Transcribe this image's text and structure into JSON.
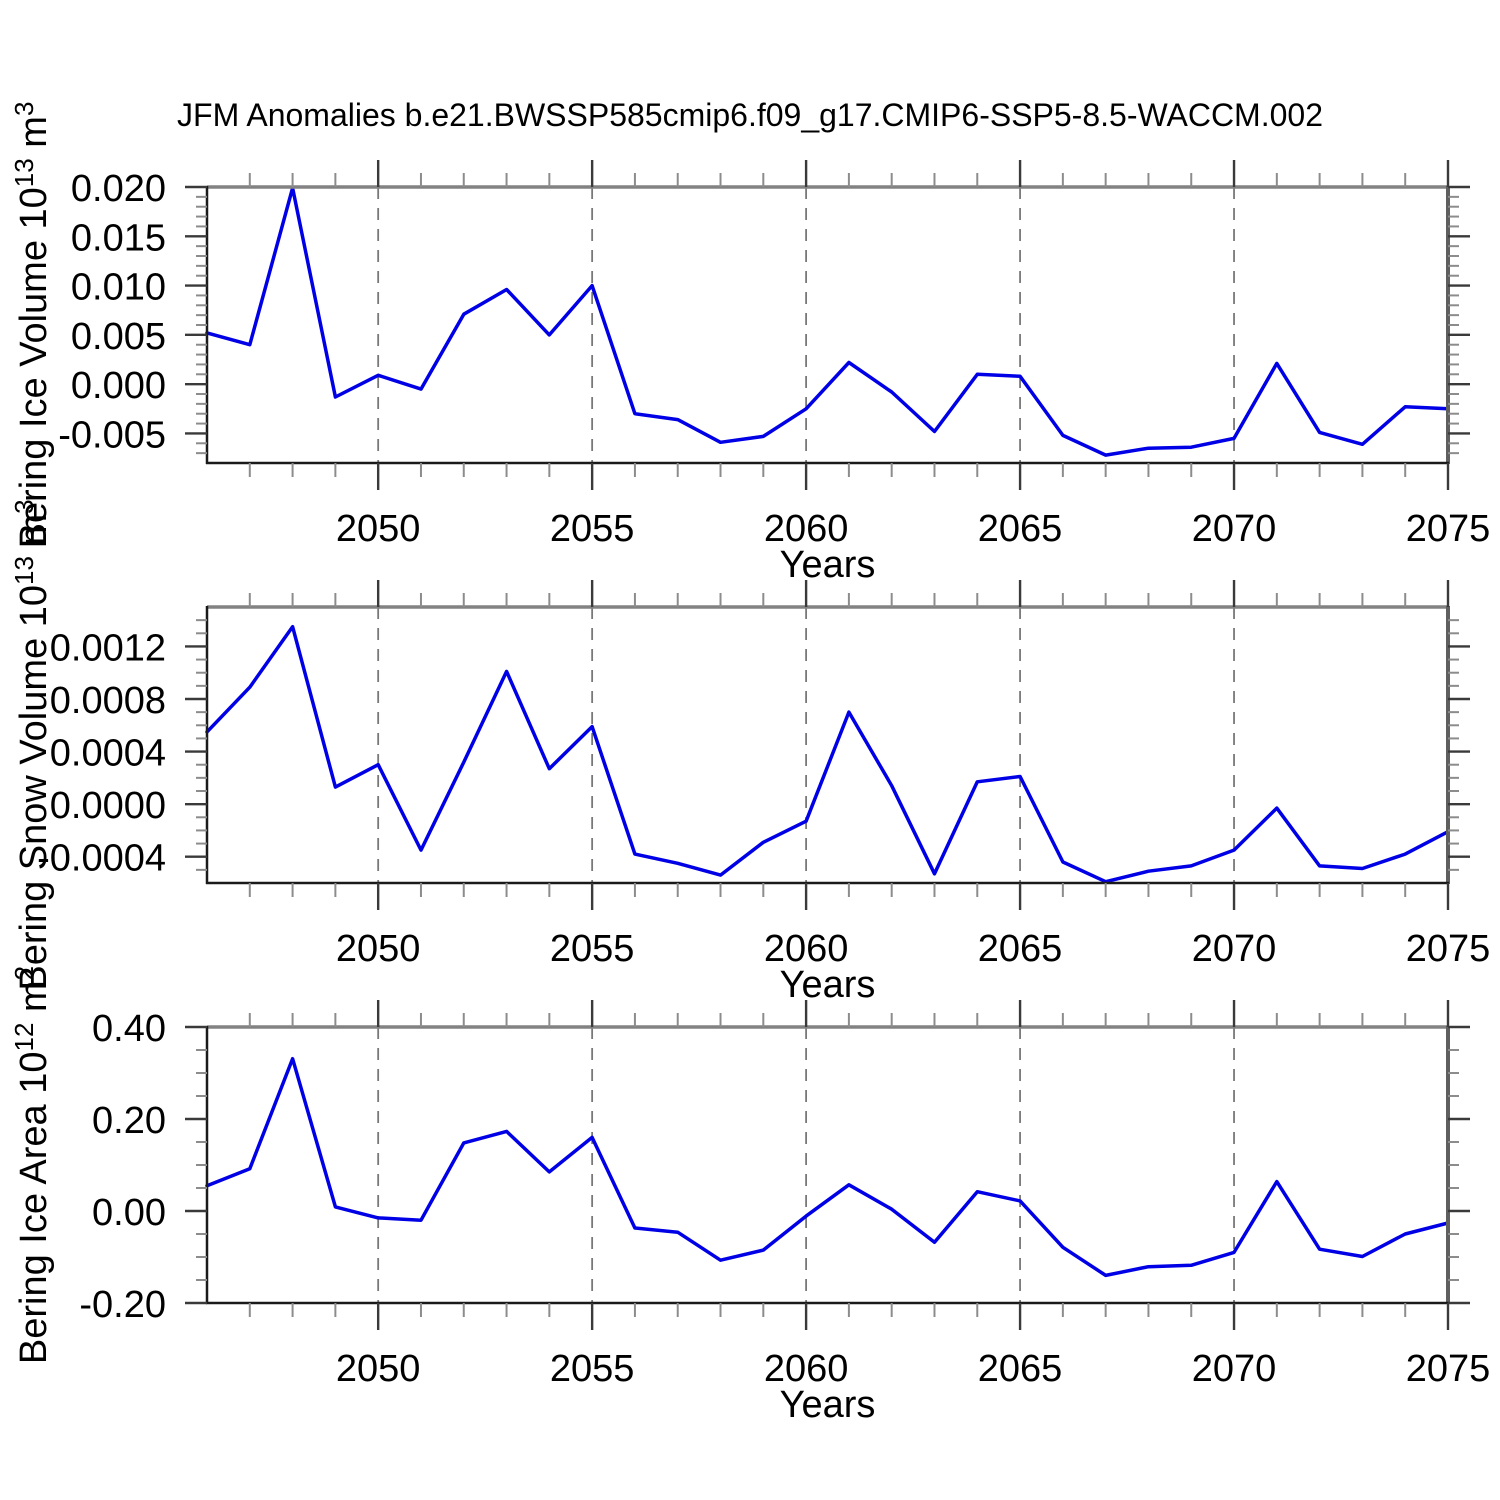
{
  "figure": {
    "title": "JFM Anomalies b.e21.BWSSP585cmip6.f09_g17.CMIP6-SSP5-8.5-WACCM.002"
  },
  "colors": {
    "line": "#0000e6",
    "grid": "#787878",
    "spine_dark": "#1a1a1a",
    "spine_top": "#828282",
    "spine_right": "#5f5f5f",
    "tick_major": "#3a3a3a",
    "tick_minor": "#8c8c8c"
  },
  "chart_data": [
    {
      "id": "bering-ice-volume",
      "type": "line",
      "ylabel": "Bering Ice Volume 10^13 m^3",
      "ylabel_parts": [
        {
          "t": "Bering Ice Volume 10"
        },
        {
          "sup": "13"
        },
        {
          "t": " m"
        },
        {
          "sup": "3"
        }
      ],
      "xlabel": "Years",
      "xlim": [
        2046,
        2075
      ],
      "ylim": [
        -0.008,
        0.02
      ],
      "xticks": [
        {
          "v": 2050,
          "label": "2050"
        },
        {
          "v": 2055,
          "label": "2055"
        },
        {
          "v": 2060,
          "label": "2060"
        },
        {
          "v": 2065,
          "label": "2065"
        },
        {
          "v": 2070,
          "label": "2070"
        },
        {
          "v": 2075,
          "label": "2075"
        }
      ],
      "yticks": [
        {
          "v": 0.02,
          "label": "0.020"
        },
        {
          "v": 0.015,
          "label": "0.015"
        },
        {
          "v": 0.01,
          "label": "0.010"
        },
        {
          "v": 0.005,
          "label": "0.005"
        },
        {
          "v": 0.0,
          "label": "0.000"
        },
        {
          "v": -0.005,
          "label": "-0.005"
        }
      ],
      "yminor_step": 0.001,
      "xminor_step": 1,
      "grid_vertical_dashed": true,
      "x": [
        2046,
        2047,
        2048,
        2049,
        2050,
        2051,
        2052,
        2053,
        2054,
        2055,
        2056,
        2057,
        2058,
        2059,
        2060,
        2061,
        2062,
        2063,
        2064,
        2065,
        2066,
        2067,
        2068,
        2069,
        2070,
        2071,
        2072,
        2073,
        2074,
        2075
      ],
      "values": [
        0.0052,
        0.004,
        0.0199,
        -0.0013,
        0.0009,
        -0.0005,
        0.0071,
        0.0096,
        0.005,
        0.01,
        -0.003,
        -0.0036,
        -0.0059,
        -0.0053,
        -0.0025,
        0.0022,
        -0.0008,
        -0.0048,
        0.001,
        0.0008,
        -0.0052,
        -0.0072,
        -0.0065,
        -0.0064,
        -0.0055,
        0.0021,
        -0.0049,
        -0.0061,
        -0.0023,
        -0.0025
      ]
    },
    {
      "id": "bering-snow-volume",
      "type": "line",
      "ylabel": "Bering Snow Volume 10^13 m^3",
      "ylabel_parts": [
        {
          "t": "Bering Snow Volume 10"
        },
        {
          "sup": "13"
        },
        {
          "t": " m"
        },
        {
          "sup": "3"
        }
      ],
      "xlabel": "Years",
      "xlim": [
        2046,
        2075
      ],
      "ylim": [
        -0.0006,
        0.0015
      ],
      "xticks": [
        {
          "v": 2050,
          "label": "2050"
        },
        {
          "v": 2055,
          "label": "2055"
        },
        {
          "v": 2060,
          "label": "2060"
        },
        {
          "v": 2065,
          "label": "2065"
        },
        {
          "v": 2070,
          "label": "2070"
        },
        {
          "v": 2075,
          "label": "2075"
        }
      ],
      "yticks": [
        {
          "v": 0.0012,
          "label": "0.0012"
        },
        {
          "v": 0.0008,
          "label": "0.0008"
        },
        {
          "v": 0.0004,
          "label": "0.0004"
        },
        {
          "v": 0.0,
          "label": "0.0000"
        },
        {
          "v": -0.0004,
          "label": "-0.0004"
        }
      ],
      "yminor_step": 0.0001,
      "xminor_step": 1,
      "grid_vertical_dashed": true,
      "x": [
        2046,
        2047,
        2048,
        2049,
        2050,
        2051,
        2052,
        2053,
        2054,
        2055,
        2056,
        2057,
        2058,
        2059,
        2060,
        2061,
        2062,
        2063,
        2064,
        2065,
        2066,
        2067,
        2068,
        2069,
        2070,
        2071,
        2072,
        2073,
        2074,
        2075
      ],
      "values": [
        0.00055,
        0.00089,
        0.00135,
        0.00013,
        0.0003,
        -0.00035,
        0.00032,
        0.00101,
        0.00027,
        0.00059,
        -0.00038,
        -0.00045,
        -0.00054,
        -0.00029,
        -0.00013,
        0.0007,
        0.00014,
        -0.00053,
        0.00017,
        0.00021,
        -0.00044,
        -0.00059,
        -0.00051,
        -0.00047,
        -0.00035,
        -3e-05,
        -0.00047,
        -0.00049,
        -0.00038,
        -0.00021
      ]
    },
    {
      "id": "bering-ice-area",
      "type": "line",
      "ylabel": "Bering Ice Area 10^12 m^2",
      "ylabel_parts": [
        {
          "t": "Bering Ice Area 10"
        },
        {
          "sup": "12"
        },
        {
          "t": " m"
        },
        {
          "sup": "2"
        }
      ],
      "xlabel": "Years",
      "xlim": [
        2046,
        2075
      ],
      "ylim": [
        -0.2,
        0.4
      ],
      "xticks": [
        {
          "v": 2050,
          "label": "2050"
        },
        {
          "v": 2055,
          "label": "2055"
        },
        {
          "v": 2060,
          "label": "2060"
        },
        {
          "v": 2065,
          "label": "2065"
        },
        {
          "v": 2070,
          "label": "2070"
        },
        {
          "v": 2075,
          "label": "2075"
        }
      ],
      "yticks": [
        {
          "v": 0.4,
          "label": "0.40"
        },
        {
          "v": 0.2,
          "label": "0.20"
        },
        {
          "v": 0.0,
          "label": "0.00"
        },
        {
          "v": -0.2,
          "label": "-0.20"
        }
      ],
      "yminor_step": 0.05,
      "xminor_step": 1,
      "grid_vertical_dashed": true,
      "x": [
        2046,
        2047,
        2048,
        2049,
        2050,
        2051,
        2052,
        2053,
        2054,
        2055,
        2056,
        2057,
        2058,
        2059,
        2060,
        2061,
        2062,
        2063,
        2064,
        2065,
        2066,
        2067,
        2068,
        2069,
        2070,
        2071,
        2072,
        2073,
        2074,
        2075
      ],
      "values": [
        0.055,
        0.092,
        0.331,
        0.009,
        -0.015,
        -0.02,
        0.148,
        0.173,
        0.085,
        0.16,
        -0.037,
        -0.046,
        -0.107,
        -0.085,
        -0.011,
        0.057,
        0.004,
        -0.068,
        0.042,
        0.022,
        -0.079,
        -0.14,
        -0.121,
        -0.118,
        -0.09,
        0.064,
        -0.083,
        -0.099,
        -0.05,
        -0.026
      ]
    }
  ]
}
